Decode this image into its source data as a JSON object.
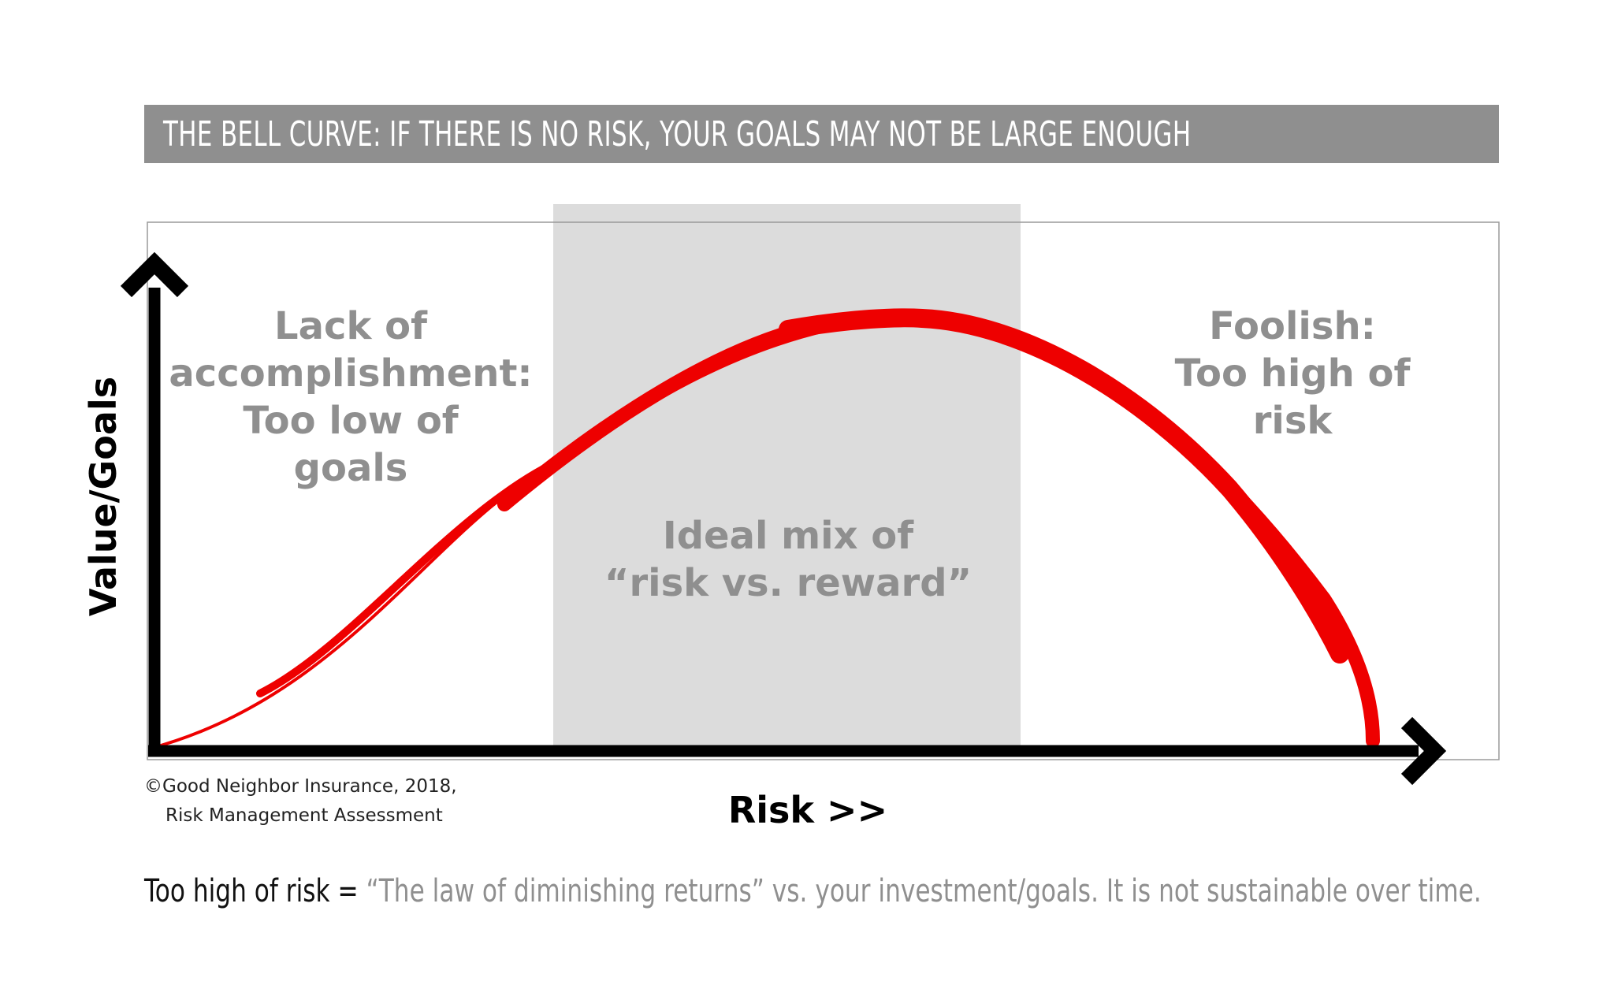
{
  "title": "THE BELL CURVE:  IF THERE IS NO RISK, YOUR GOALS MAY NOT BE LARGE ENOUGH",
  "axes": {
    "y_label": "Value/Goals",
    "x_label": "Risk >>"
  },
  "zones": {
    "left": [
      "Lack of",
      "accomplishment:",
      "Too low of",
      "goals"
    ],
    "middle": [
      "Ideal mix of",
      "“risk vs. reward”"
    ],
    "right": [
      "Foolish:",
      "Too high of",
      "risk"
    ]
  },
  "credit": {
    "line1": "©Good Neighbor Insurance, 2018,",
    "line2": "Risk Management Assessment"
  },
  "footnote": {
    "lead": "Too high of risk =",
    "rest": " “The law of diminishing returns” vs. your investment/goals. It is not sustainable over time."
  },
  "colors": {
    "title_bar": "#8f8f8f",
    "curve": "#ee0000",
    "ideal_zone": "#dcdcdc",
    "zone_text": "#8f8f8f",
    "axis": "#000000"
  }
}
